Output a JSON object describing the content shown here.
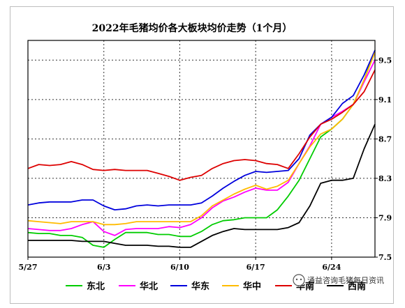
{
  "chart_data": {
    "type": "line",
    "title": "2022年毛猪均价各大板块均价走势（1个月）",
    "xlabel": "",
    "ylabel": "",
    "x_tick_labels": [
      "5/27",
      "6/3",
      "6/10",
      "6/17",
      "6/24"
    ],
    "x_tick_index": [
      0,
      7,
      14,
      21,
      28
    ],
    "y_ticks": [
      7.5,
      7.9,
      8.3,
      8.7,
      9.1,
      9.5
    ],
    "ylim": [
      7.5,
      9.7
    ],
    "grid": true,
    "legend": "bottom",
    "series": [
      {
        "name": "东北",
        "color": "#00cc00",
        "values": [
          7.75,
          7.74,
          7.74,
          7.72,
          7.72,
          7.7,
          7.62,
          7.6,
          7.68,
          7.75,
          7.75,
          7.75,
          7.73,
          7.73,
          7.71,
          7.71,
          7.76,
          7.83,
          7.87,
          7.88,
          7.9,
          7.9,
          7.9,
          7.98,
          8.12,
          8.28,
          8.5,
          8.72,
          8.8,
          8.9,
          9.05,
          9.3,
          9.6
        ]
      },
      {
        "name": "华北",
        "color": "#ff00ff",
        "values": [
          7.79,
          7.78,
          7.77,
          7.77,
          7.79,
          7.83,
          7.86,
          7.76,
          7.72,
          7.78,
          7.79,
          7.79,
          7.79,
          7.81,
          7.8,
          7.83,
          7.9,
          8.0,
          8.07,
          8.11,
          8.16,
          8.2,
          8.18,
          8.18,
          8.26,
          8.45,
          8.63,
          8.85,
          8.92,
          8.98,
          9.05,
          9.28,
          9.5
        ]
      },
      {
        "name": "华东",
        "color": "#0000dd",
        "values": [
          8.03,
          8.05,
          8.06,
          8.06,
          8.06,
          8.08,
          8.08,
          8.02,
          7.98,
          7.99,
          8.02,
          8.03,
          8.02,
          8.03,
          8.03,
          8.03,
          8.05,
          8.12,
          8.2,
          8.27,
          8.33,
          8.37,
          8.36,
          8.37,
          8.38,
          8.5,
          8.74,
          8.85,
          8.92,
          9.06,
          9.14,
          9.35,
          9.6
        ]
      },
      {
        "name": "华中",
        "color": "#ffbb00",
        "values": [
          7.87,
          7.86,
          7.85,
          7.84,
          7.86,
          7.86,
          7.86,
          7.83,
          7.83,
          7.84,
          7.86,
          7.86,
          7.86,
          7.86,
          7.86,
          7.86,
          7.92,
          8.02,
          8.08,
          8.14,
          8.19,
          8.23,
          8.19,
          8.22,
          8.28,
          8.45,
          8.62,
          8.75,
          8.8,
          8.9,
          9.05,
          9.3,
          9.58
        ]
      },
      {
        "name": "华南",
        "color": "#dd0000",
        "values": [
          8.4,
          8.44,
          8.43,
          8.44,
          8.47,
          8.44,
          8.39,
          8.38,
          8.39,
          8.38,
          8.38,
          8.38,
          8.35,
          8.32,
          8.28,
          8.31,
          8.33,
          8.4,
          8.45,
          8.48,
          8.49,
          8.48,
          8.45,
          8.44,
          8.4,
          8.55,
          8.72,
          8.85,
          8.9,
          8.97,
          9.05,
          9.18,
          9.4
        ]
      },
      {
        "name": "西南",
        "color": "#000000",
        "values": [
          7.67,
          7.67,
          7.67,
          7.67,
          7.67,
          7.66,
          7.66,
          7.66,
          7.64,
          7.62,
          7.62,
          7.62,
          7.61,
          7.61,
          7.6,
          7.6,
          7.66,
          7.72,
          7.76,
          7.79,
          7.78,
          7.78,
          7.78,
          7.78,
          7.8,
          7.85,
          8.02,
          8.25,
          8.28,
          8.28,
          8.3,
          8.6,
          8.85
        ]
      }
    ]
  },
  "watermark": {
    "icon": "wechat-icon",
    "text": "涌益咨询毛猪每日资讯"
  }
}
